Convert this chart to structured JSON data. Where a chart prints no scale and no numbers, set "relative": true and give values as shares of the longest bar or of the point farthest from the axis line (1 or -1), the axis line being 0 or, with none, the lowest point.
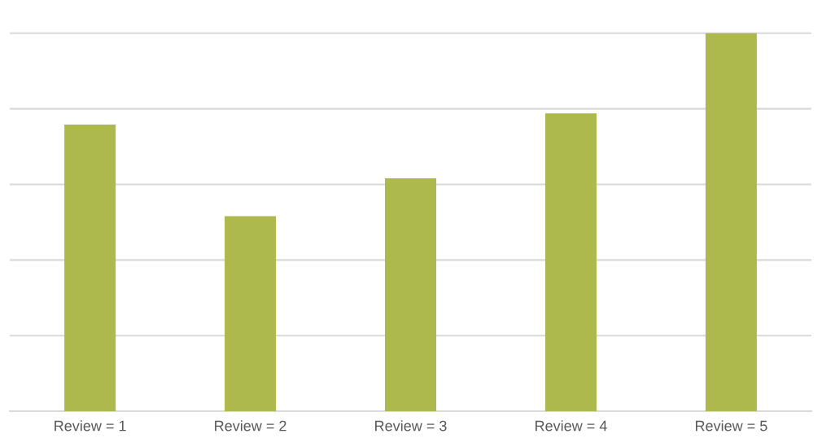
{
  "chart_data": {
    "type": "bar",
    "relative": true,
    "categories": [
      "Review = 1",
      "Review = 2",
      "Review = 3",
      "Review = 4",
      "Review = 5"
    ],
    "values": [
      0.758,
      0.516,
      0.616,
      0.788,
      1
    ],
    "color": "#adb94d",
    "grid": "y"
  }
}
